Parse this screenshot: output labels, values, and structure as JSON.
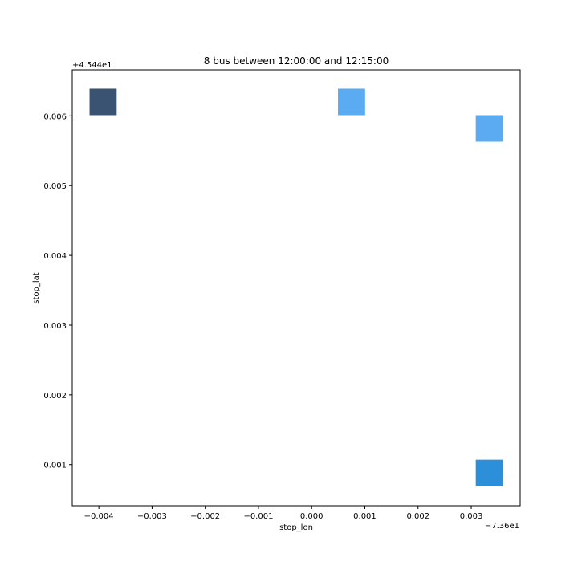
{
  "chart_data": {
    "type": "heatmap",
    "title": "8 bus between 12:00:00 and 12:15:00",
    "xlabel": "stop_lon",
    "ylabel": "stop_lat",
    "x_offset_label": "−7.36e1",
    "y_offset_label": "+4.544e1",
    "xlim": [
      -0.0045,
      0.00392
    ],
    "ylim": [
      0.00041,
      0.00666
    ],
    "x_ticks": [
      -0.004,
      -0.003,
      -0.002,
      -0.001,
      0.0,
      0.001,
      0.002,
      0.003
    ],
    "x_tick_labels": [
      "−0.004",
      "−0.003",
      "−0.002",
      "−0.001",
      "0.000",
      "0.001",
      "0.002",
      "0.003"
    ],
    "y_ticks": [
      0.001,
      0.002,
      0.003,
      0.004,
      0.005,
      0.006
    ],
    "y_tick_labels": [
      "0.001",
      "0.002",
      "0.003",
      "0.004",
      "0.005",
      "0.006"
    ],
    "grid": false,
    "cell_width": 0.00051,
    "cell_height": 0.00038,
    "cells": [
      {
        "x": -0.00392,
        "y": 0.0062,
        "color": "#3a5373"
      },
      {
        "x": 0.00075,
        "y": 0.0062,
        "color": "#5aabf2"
      },
      {
        "x": 0.00334,
        "y": 0.00582,
        "color": "#5aabf2"
      },
      {
        "x": 0.00334,
        "y": 0.00088,
        "color": "#2b8fd9"
      }
    ]
  }
}
